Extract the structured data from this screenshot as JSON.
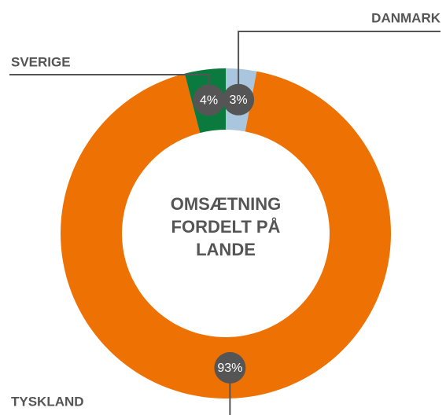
{
  "chart_data": {
    "type": "donut",
    "title": "OMSÆTNING FORDELT PÅ LANDE",
    "categories": [
      "DANMARK",
      "TYSKLAND",
      "SVERIGE"
    ],
    "values": [
      3,
      93,
      4
    ],
    "value_labels": [
      "3%",
      "93%",
      "4%"
    ],
    "colors": [
      "#a9c6de",
      "#ee7203",
      "#0b7a3e"
    ]
  }
}
